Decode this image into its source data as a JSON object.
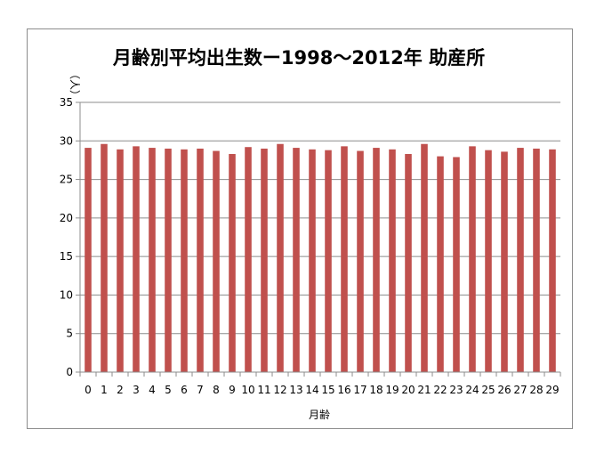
{
  "chart_data": {
    "type": "bar",
    "title": "月齢別平均出生数ー1998～2012年 助産所",
    "xlabel": "月齢",
    "ylabel": "（人）",
    "ylim": [
      0,
      35
    ],
    "yticks": [
      0,
      5,
      10,
      15,
      20,
      25,
      30,
      35
    ],
    "grid": true,
    "legend": "none",
    "bar_color": "#c0504d",
    "categories": [
      "0",
      "1",
      "2",
      "3",
      "4",
      "5",
      "6",
      "7",
      "8",
      "9",
      "10",
      "11",
      "12",
      "13",
      "14",
      "15",
      "16",
      "17",
      "18",
      "19",
      "20",
      "21",
      "22",
      "23",
      "24",
      "25",
      "26",
      "27",
      "28",
      "29"
    ],
    "values": [
      29.1,
      29.6,
      28.9,
      29.3,
      29.1,
      29.0,
      28.9,
      29.0,
      28.7,
      28.3,
      29.2,
      29.0,
      29.6,
      29.1,
      28.9,
      28.8,
      29.3,
      28.7,
      29.1,
      28.9,
      28.3,
      29.6,
      28.0,
      27.9,
      29.3,
      28.8,
      28.6,
      29.1,
      29.0,
      28.9
    ]
  }
}
